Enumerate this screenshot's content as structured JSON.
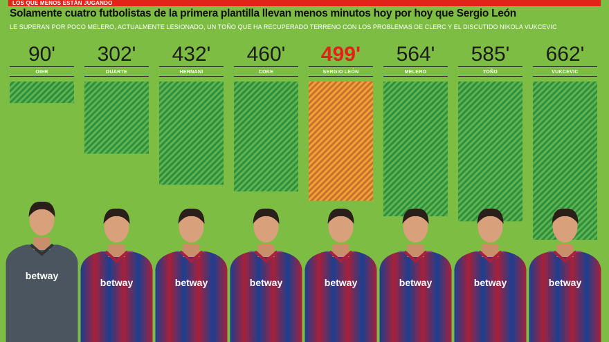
{
  "header": {
    "kicker": "LOS QUE MENOS ESTÁN JUGANDO",
    "title": "Solamente cuatro futbolistas de la primera plantilla llevan menos minutos hoy por hoy que Sergio León",
    "subtitle": "LE SUPERAN POR POCO MELERO, ACTUALMENTE LESIONADO, UN TOÑO QUE HA RECUPERADO TERRENO CON LOS PROBLEMAS DE CLERC Y EL DISCUTIDO NIKOLA VUKCEVIC"
  },
  "colors": {
    "background": "#7dbd44",
    "bar": "#4da94a",
    "bar_highlight": "#e8962a",
    "highlight_text": "#e2231a",
    "top_bar": "#e2231a"
  },
  "chart_data": {
    "type": "bar",
    "categories": [
      "OIER",
      "DUARTE",
      "HERNANI",
      "COKE",
      "SERGIO LEÓN",
      "MELERO",
      "TOÑO",
      "VUKCEVIC"
    ],
    "values": [
      90,
      302,
      432,
      460,
      499,
      564,
      585,
      662
    ],
    "value_labels": [
      "90'",
      "302'",
      "432'",
      "460'",
      "499'",
      "564'",
      "585'",
      "662'"
    ],
    "highlight": "SERGIO LEÓN",
    "title": "Solamente cuatro futbolistas de la primera plantilla llevan menos minutos hoy por hoy que Sergio León",
    "xlabel": "",
    "ylabel": "",
    "ylim": [
      0,
      662
    ],
    "grid": false
  },
  "players": [
    {
      "name": "OIER",
      "shirt": "betway",
      "kit": "goalkeeper"
    },
    {
      "name": "DUARTE",
      "shirt": "betway",
      "kit": "field"
    },
    {
      "name": "HERNANI",
      "shirt": "betway",
      "kit": "field"
    },
    {
      "name": "COKE",
      "shirt": "betway",
      "kit": "field"
    },
    {
      "name": "SERGIO LEÓN",
      "shirt": "betway",
      "kit": "field"
    },
    {
      "name": "MELERO",
      "shirt": "betway",
      "kit": "field"
    },
    {
      "name": "TOÑO",
      "shirt": "betway",
      "kit": "field"
    },
    {
      "name": "VUKCEVIC",
      "shirt": "betway",
      "kit": "field"
    }
  ]
}
